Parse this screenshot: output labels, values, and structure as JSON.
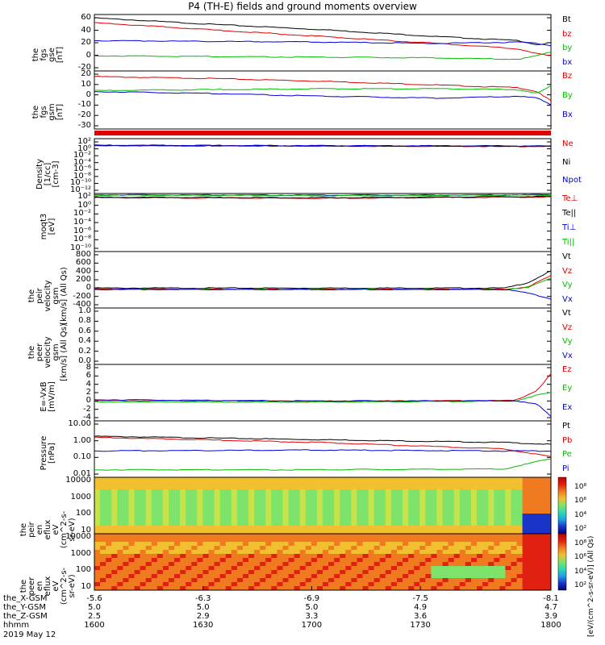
{
  "title": "P4 (TH-E) fields and ground moments overview",
  "colors": {
    "black": "#000000",
    "red": "#e00000",
    "green": "#00c000",
    "blue": "#0000dd"
  },
  "chart_data": [
    {
      "id": "fgs_gse",
      "type": "line",
      "ylabel": "the\nfgs\ngse\n[nT]",
      "yticks": [
        "60",
        "40",
        "20",
        "0",
        "-20"
      ],
      "ylim": [
        -20,
        62
      ],
      "series": [
        {
          "name": "Bt",
          "color": "#000000",
          "x": [
            0,
            0.25,
            0.5,
            0.75,
            0.93,
            0.97,
            1.0
          ],
          "values": [
            57,
            48,
            40,
            30,
            24,
            18,
            21
          ]
        },
        {
          "name": "bz",
          "color": "#e00000",
          "x": [
            0,
            0.25,
            0.5,
            0.75,
            0.93,
            0.97,
            1.0
          ],
          "values": [
            50,
            40,
            30,
            20,
            12,
            5,
            2
          ]
        },
        {
          "name": "by",
          "color": "#00c000",
          "x": [
            0,
            0.25,
            0.5,
            0.75,
            0.93,
            0.97,
            1.0
          ],
          "values": [
            2,
            1,
            0,
            -1,
            -3,
            2,
            8
          ]
        },
        {
          "name": "bx",
          "color": "#0000dd",
          "x": [
            0,
            0.25,
            0.5,
            0.75,
            0.93,
            0.97,
            1.0
          ],
          "values": [
            24,
            23,
            22,
            20,
            22,
            20,
            17
          ]
        }
      ]
    },
    {
      "id": "fgs_gsm",
      "type": "line",
      "ylabel": "the\nfgs\ngsm\n[nT]",
      "yticks": [
        "20",
        "10",
        "0",
        "-10",
        "-20",
        "-30"
      ],
      "ylim": [
        -38,
        24
      ],
      "series": [
        {
          "name": "Bz",
          "color": "#e00000",
          "x": [
            0,
            0.25,
            0.5,
            0.75,
            0.93,
            0.97,
            1.0
          ],
          "values": [
            18,
            16,
            13,
            9,
            6,
            2,
            -8
          ]
        },
        {
          "name": "By",
          "color": "#00c000",
          "x": [
            0,
            0.25,
            0.5,
            0.75,
            0.93,
            0.97,
            1.0
          ],
          "values": [
            3,
            4,
            5,
            5,
            4,
            0,
            8
          ]
        },
        {
          "name": "Bx",
          "color": "#0000dd",
          "x": [
            0,
            0.25,
            0.5,
            0.75,
            0.93,
            0.97,
            1.0
          ],
          "values": [
            2,
            0,
            -3,
            -5,
            -3,
            -5,
            -12
          ]
        }
      ]
    },
    {
      "id": "density",
      "type": "line",
      "ylabel": "Density\n[1/cc]\n[cm-3]",
      "yticks": [
        "10²",
        "10⁰",
        "10⁻²",
        "10⁻⁴",
        "10⁻⁶",
        "10⁻⁸",
        "10⁻¹⁰",
        "10⁻¹²"
      ],
      "ylim": [
        -13,
        2.6
      ],
      "log": true,
      "series": [
        {
          "name": "Ne",
          "color": "#e00000",
          "x": [
            0,
            0.5,
            1.0
          ],
          "values": [
            0.6,
            0.5,
            0.4
          ]
        },
        {
          "name": "Ni",
          "color": "#000000",
          "x": [
            0,
            0.5,
            1.0
          ],
          "values": [
            0.7,
            0.6,
            0.5
          ]
        },
        {
          "name": "Npot",
          "color": "#0000dd",
          "x": [
            0,
            0.5,
            1.0
          ],
          "values": [
            0.65,
            0.55,
            0.45
          ]
        }
      ]
    },
    {
      "id": "temperature",
      "type": "line",
      "ylabel": "moqt3\n[eV]",
      "yticks": [
        "10²",
        "10⁰",
        "10⁻²",
        "10⁻⁴",
        "10⁻⁶",
        "10⁻⁸",
        "10⁻¹⁰"
      ],
      "ylim": [
        -11,
        2.6
      ],
      "log": true,
      "series": [
        {
          "name": "Te⊥",
          "color": "#e00000",
          "x": [
            0,
            0.5,
            1.0
          ],
          "values": [
            1.6,
            1.5,
            1.8
          ]
        },
        {
          "name": "Te||",
          "color": "#000000",
          "x": [
            0,
            0.5,
            1.0
          ],
          "values": [
            1.7,
            1.6,
            1.9
          ]
        },
        {
          "name": "Ti⊥",
          "color": "#0000dd",
          "x": [
            0,
            0.5,
            1.0
          ],
          "values": [
            2.3,
            2.2,
            2.3
          ]
        },
        {
          "name": "Ti||",
          "color": "#00c000",
          "x": [
            0,
            0.5,
            1.0
          ],
          "values": [
            2.2,
            2.1,
            2.2
          ]
        }
      ]
    },
    {
      "id": "peir_velocity",
      "type": "line",
      "ylabel": "the\npeir\nvelocity\ngsm\n[km/s] (All Qs)",
      "yticks": [
        "800",
        "600",
        "400",
        "200",
        "0",
        "-200",
        "-400"
      ],
      "ylim": [
        -400,
        820
      ],
      "series": [
        {
          "name": "Vt",
          "color": "#000000",
          "x": [
            0,
            0.5,
            0.9,
            0.95,
            1.0
          ],
          "values": [
            30,
            30,
            30,
            150,
            400
          ]
        },
        {
          "name": "Vz",
          "color": "#e00000",
          "x": [
            0,
            0.5,
            0.9,
            0.95,
            1.0
          ],
          "values": [
            10,
            5,
            5,
            60,
            300
          ]
        },
        {
          "name": "Vy",
          "color": "#00c000",
          "x": [
            0,
            0.5,
            0.9,
            0.95,
            1.0
          ],
          "values": [
            0,
            0,
            0,
            40,
            250
          ]
        },
        {
          "name": "Vx",
          "color": "#0000dd",
          "x": [
            0,
            0.5,
            0.9,
            0.95,
            1.0
          ],
          "values": [
            0,
            0,
            0,
            -80,
            -200
          ]
        }
      ]
    },
    {
      "id": "peer_velocity",
      "type": "line",
      "ylabel": "the\npeer\nvelocity\ngsm\n[km/s] (All Qs)",
      "yticks": [
        "1.0",
        "0.8",
        "0.6",
        "0.4",
        "0.2",
        "0.0"
      ],
      "ylim": [
        0,
        1.0
      ],
      "series": [
        {
          "name": "Vt",
          "color": "#000000",
          "x": [],
          "values": []
        },
        {
          "name": "Vz",
          "color": "#e00000",
          "x": [],
          "values": []
        },
        {
          "name": "Vy",
          "color": "#00c000",
          "x": [],
          "values": []
        },
        {
          "name": "Vx",
          "color": "#0000dd",
          "x": [],
          "values": []
        }
      ]
    },
    {
      "id": "e_field",
      "type": "line",
      "ylabel": "E=-VxB\n[mV/m]",
      "yticks": [
        "8",
        "6",
        "4",
        "2",
        "0",
        "-2",
        "-4"
      ],
      "ylim": [
        -4,
        8
      ],
      "series": [
        {
          "name": "Ez",
          "color": "#e00000",
          "x": [
            0,
            0.5,
            0.92,
            0.97,
            1.0
          ],
          "values": [
            0.3,
            0.2,
            0.3,
            2.5,
            6
          ]
        },
        {
          "name": "Ey",
          "color": "#00c000",
          "x": [
            0,
            0.5,
            0.92,
            0.97,
            1.0
          ],
          "values": [
            0,
            0,
            0.2,
            1.5,
            2
          ]
        },
        {
          "name": "Ex",
          "color": "#0000dd",
          "x": [
            0,
            0.5,
            0.92,
            0.97,
            1.0
          ],
          "values": [
            0.5,
            0.2,
            0.3,
            -0.5,
            -3
          ]
        }
      ]
    },
    {
      "id": "pressure",
      "type": "line",
      "ylabel": "Pressure\n[nPa]",
      "yticks": [
        "10.00",
        "1.00",
        "0.10",
        "0.01"
      ],
      "ylim": [
        -2,
        1
      ],
      "log": true,
      "series": [
        {
          "name": "Pt",
          "color": "#000000",
          "x": [
            0,
            0.5,
            0.9,
            1.0
          ],
          "values": [
            0.18,
            0.0,
            -0.15,
            -0.25
          ]
        },
        {
          "name": "Pb",
          "color": "#e00000",
          "x": [
            0,
            0.5,
            0.9,
            1.0
          ],
          "values": [
            0.12,
            -0.15,
            -0.5,
            -0.9
          ]
        },
        {
          "name": "Pe",
          "color": "#00c000",
          "x": [
            0,
            0.5,
            0.9,
            1.0
          ],
          "values": [
            -1.6,
            -1.6,
            -1.55,
            -1.0
          ]
        },
        {
          "name": "Pi",
          "color": "#0000dd",
          "x": [
            0,
            0.5,
            0.9,
            1.0
          ],
          "values": [
            -0.6,
            -0.55,
            -0.6,
            -0.6
          ]
        }
      ]
    },
    {
      "id": "peir_en_eflux",
      "type": "heatmap",
      "ylabel": "the\npeir\nen\neflux\neV\n(cm^2-s-\nsr-eV)",
      "yticks": [
        "10000",
        "1000",
        "100",
        "10"
      ]
    },
    {
      "id": "peer_en_eflux",
      "type": "heatmap",
      "ylabel": "the\npeer\nen\neflux\neV\n(cm^2-s-\nsr-eV)",
      "yticks": [
        "10000",
        "1000",
        "100",
        "10"
      ]
    }
  ],
  "colorbar": {
    "upper_ticks": [
      "10⁸",
      "10⁶",
      "10⁴",
      "10²"
    ],
    "lower_ticks": [
      "10⁸",
      "10⁶",
      "10⁴",
      "10²"
    ],
    "title": "[eV/(cm^2-s-sr-eV)] (All Qs)"
  },
  "xaxis": {
    "rows": [
      {
        "label": "the_X-GSM",
        "values": [
          "-5.6",
          "-6.3",
          "-6.9",
          "-7.5",
          "-8.1"
        ]
      },
      {
        "label": "the_Y-GSM",
        "values": [
          "5.0",
          "5.0",
          "5.0",
          "4.9",
          "4.7"
        ]
      },
      {
        "label": "the_Z-GSM",
        "values": [
          "2.5",
          "2.9",
          "3.3",
          "3.6",
          "3.9"
        ]
      },
      {
        "label": "hhmm",
        "values": [
          "1600",
          "1630",
          "1700",
          "1730",
          "1800"
        ]
      }
    ],
    "date": "2019 May 12"
  }
}
